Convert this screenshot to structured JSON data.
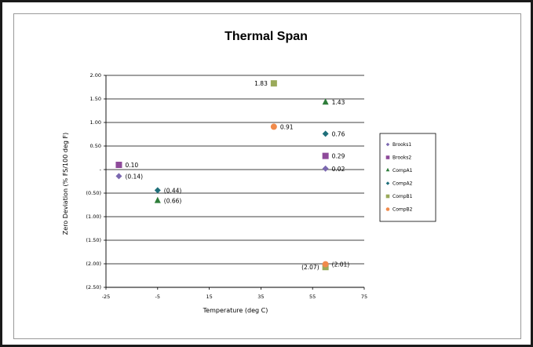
{
  "chart_data": {
    "type": "scatter",
    "title": "Thermal Span",
    "xlabel": "Temperature (deg C)",
    "ylabel": "Zero Deviation (% FS/100 deg F)",
    "xlim": [
      -25,
      75
    ],
    "ylim": [
      -2.5,
      2.0
    ],
    "x_ticks": [
      "-25",
      "-5",
      "15",
      "35",
      "55",
      "75"
    ],
    "y_ticks": [
      "2.00",
      "1.50",
      "1.00",
      "0.50",
      "-",
      "(0.50)",
      "(1.00)",
      "(1.50)",
      "(2.00)",
      "(2.50)"
    ],
    "grid": true,
    "legend_position": "right",
    "series": [
      {
        "name": "Brooks1",
        "color": "#7b68b0",
        "marker": "diamond",
        "points": [
          {
            "x": -20,
            "y": -0.14,
            "label": "(0.14)"
          },
          {
            "x": 60,
            "y": 0.02,
            "label": "0.02"
          }
        ]
      },
      {
        "name": "Brooks2",
        "color": "#8e4a9a",
        "marker": "square",
        "points": [
          {
            "x": -20,
            "y": 0.1,
            "label": "0.10"
          },
          {
            "x": 60,
            "y": 0.29,
            "label": "0.29"
          }
        ]
      },
      {
        "name": "CompA1",
        "color": "#2e7d3a",
        "marker": "triangle",
        "points": [
          {
            "x": -5,
            "y": -0.66,
            "label": "(0.66)"
          },
          {
            "x": 60,
            "y": 1.43,
            "label": "1.43"
          }
        ]
      },
      {
        "name": "CompA2",
        "color": "#1f6f7a",
        "marker": "diamond",
        "points": [
          {
            "x": -5,
            "y": -0.44,
            "label": "(0.44)"
          },
          {
            "x": 60,
            "y": 0.76,
            "label": "0.76"
          }
        ]
      },
      {
        "name": "CompB1",
        "color": "#9aaa5a",
        "marker": "square",
        "points": [
          {
            "x": 40,
            "y": 1.83,
            "label": ""
          },
          {
            "x": 60,
            "y": -2.07,
            "label": "(2.07)"
          }
        ]
      },
      {
        "name": "CompB2",
        "color": "#f08a4b",
        "marker": "circle",
        "points": [
          {
            "x": 40,
            "y": 0.91,
            "label": "0.91"
          },
          {
            "x": 60,
            "y": -2.01,
            "label": "(2.01)"
          }
        ]
      }
    ],
    "annotations": [
      {
        "text": "1.83",
        "x": 40,
        "y": 1.83
      }
    ]
  }
}
